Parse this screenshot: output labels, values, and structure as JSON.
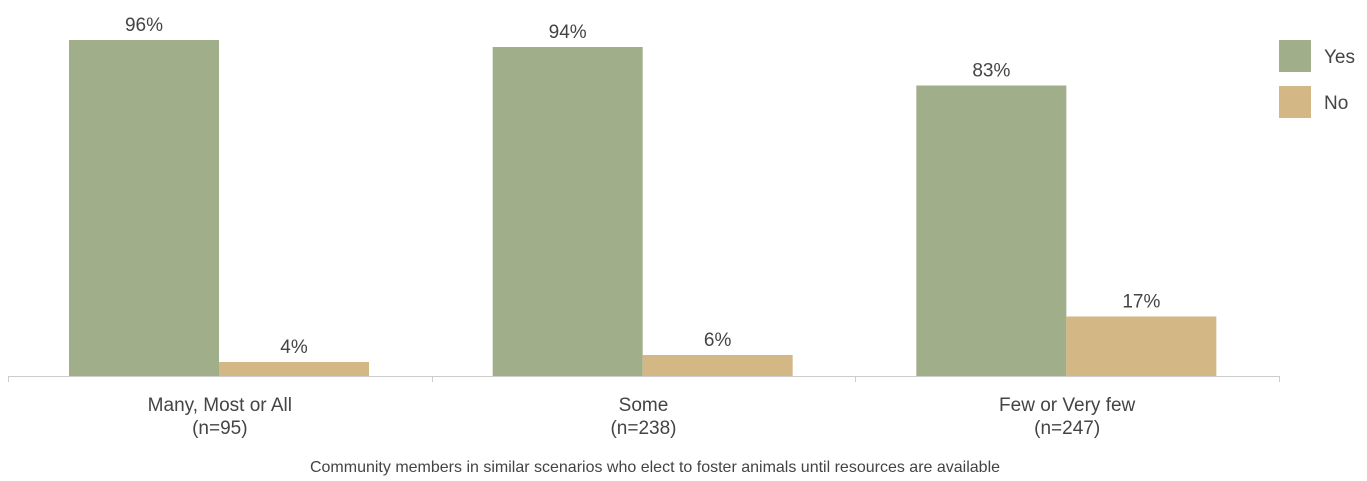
{
  "chart_data": {
    "type": "bar",
    "categories": [
      {
        "name": "Many, Most or All",
        "n": "(n=95)"
      },
      {
        "name": "Some",
        "n": "(n=238)"
      },
      {
        "name": "Few or Very few",
        "n": "(n=247)"
      }
    ],
    "series": [
      {
        "name": "Yes",
        "color": "#a0ae89",
        "values": [
          96,
          94,
          83
        ],
        "labels": [
          "96%",
          "94%",
          "83%"
        ]
      },
      {
        "name": "No",
        "color": "#d3b784",
        "values": [
          4,
          6,
          17
        ],
        "labels": [
          "4%",
          "6%",
          "17%"
        ]
      }
    ],
    "title": "",
    "xlabel": "Community members in similar scenarios who elect to foster animals until resources are available",
    "ylabel": "",
    "ylim": [
      0,
      100
    ],
    "grid": false,
    "legend_position": "top-right",
    "axis_color": "#cccccc"
  }
}
